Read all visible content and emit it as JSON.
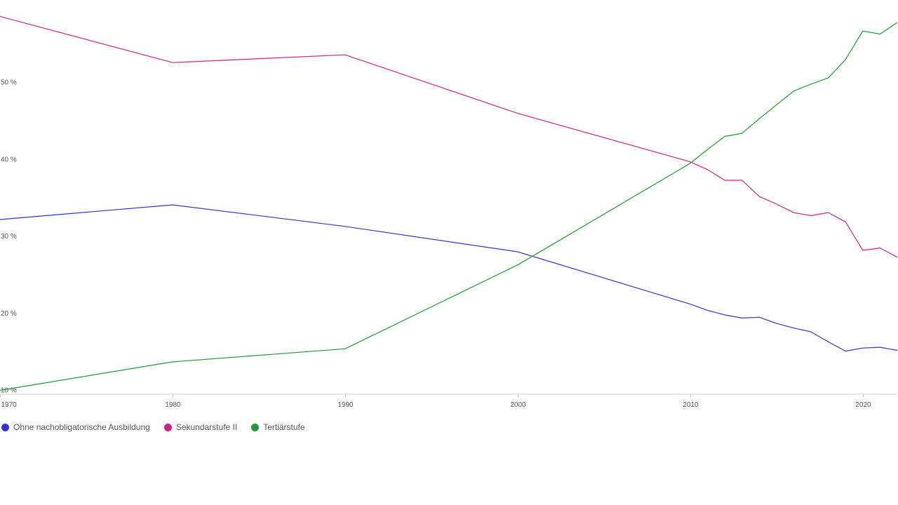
{
  "chart_data": {
    "type": "line",
    "title": "",
    "xlabel": "",
    "ylabel": "",
    "x": [
      1970,
      1980,
      1990,
      2000,
      2010,
      2011,
      2012,
      2013,
      2014,
      2015,
      2016,
      2017,
      2018,
      2019,
      2020,
      2021,
      2022
    ],
    "xlim": [
      1970,
      2022
    ],
    "ylim": [
      9.5,
      60
    ],
    "grid": false,
    "legend_position": "bottom-left",
    "x_ticks": [
      {
        "value": 1970,
        "label": "1970"
      },
      {
        "value": 1980,
        "label": "1980"
      },
      {
        "value": 1990,
        "label": "1990"
      },
      {
        "value": 2000,
        "label": "2000"
      },
      {
        "value": 2010,
        "label": "2010"
      },
      {
        "value": 2020,
        "label": "2020"
      }
    ],
    "y_ticks": [
      {
        "value": 10,
        "label": "10 %"
      },
      {
        "value": 20,
        "label": "20 %"
      },
      {
        "value": 30,
        "label": "30 %"
      },
      {
        "value": 40,
        "label": "40 %"
      },
      {
        "value": 50,
        "label": "50 %"
      }
    ],
    "series": [
      {
        "name": "Ohne nachobligatorische Ausbildung",
        "color": "#3333cc",
        "values": [
          32.2,
          34.1,
          31.3,
          28.0,
          21.2,
          20.4,
          19.8,
          19.4,
          19.5,
          18.7,
          18.1,
          17.6,
          16.3,
          15.1,
          15.5,
          15.6,
          15.2
        ]
      },
      {
        "name": "Sekundarstufe II",
        "color": "#cc2288",
        "values": [
          58.6,
          52.6,
          53.6,
          46.0,
          39.7,
          38.7,
          37.3,
          37.3,
          35.2,
          34.2,
          33.1,
          32.7,
          33.1,
          31.9,
          28.2,
          28.5,
          27.3
        ]
      },
      {
        "name": "Tertiärstufe",
        "color": "#229933",
        "values": [
          10.0,
          13.7,
          15.4,
          26.3,
          39.5,
          41.3,
          43.0,
          43.4,
          45.3,
          47.1,
          48.9,
          49.8,
          50.6,
          53.0,
          56.7,
          56.3,
          57.8
        ]
      }
    ]
  }
}
